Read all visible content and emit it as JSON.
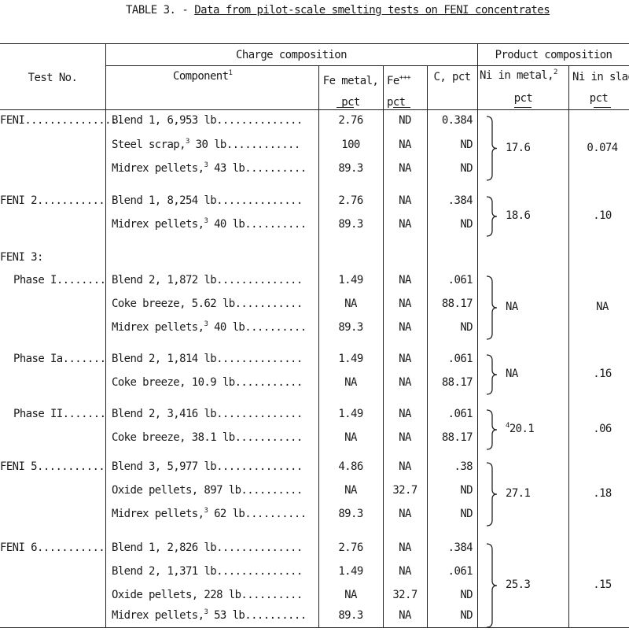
{
  "title": {
    "prefix": "TABLE 3. - ",
    "text": "Data from pilot-scale smelting tests on FENI concentrates"
  },
  "header": {
    "charge_group": "Charge composition",
    "product_group": "Product composition",
    "test_no": "Test No.",
    "component": "Component",
    "component_note": "1",
    "fe_metal_1": "Fe metal,",
    "fe_metal_2": "pct",
    "fe3_1": "Fe",
    "fe3_sup": "+++",
    "fe3_2": "pct",
    "c_pct": "C, pct",
    "ni_metal_1": "Ni in metal,",
    "ni_metal_note": "2",
    "ni_metal_2": "pct",
    "ni_slag_1": "Ni in slag",
    "ni_slag_2": "pct"
  },
  "tests": [
    {
      "label": "FENI",
      "dots": "................",
      "ni_metal": "17.6",
      "ni_slag": "0.074",
      "rows": [
        {
          "comp": "Blend 1, 6,953 lb",
          "sup": "",
          "tail": "",
          "dots": "..............",
          "fe": "2.76",
          "fe3": "ND",
          "c": "0.384"
        },
        {
          "comp": "Steel scrap,",
          "sup": "3",
          "tail": " 30 lb",
          "dots": "............",
          "fe": "100",
          "fe3": "NA",
          "c": "ND"
        },
        {
          "comp": "Midrex pellets,",
          "sup": "3",
          "tail": " 43 lb",
          "dots": "..........",
          "fe": "89.3",
          "fe3": "NA",
          "c": "ND"
        }
      ]
    },
    {
      "label": "FENI 2",
      "dots": "...........",
      "ni_metal": "18.6",
      "ni_slag": ".10",
      "rows": [
        {
          "comp": "Blend 1, 8,254 lb",
          "sup": "",
          "tail": "",
          "dots": "..............",
          "fe": "2.76",
          "fe3": "NA",
          "c": ".384"
        },
        {
          "comp": "Midrex pellets,",
          "sup": "3",
          "tail": " 40 lb",
          "dots": "..........",
          "fe": "89.3",
          "fe3": "NA",
          "c": "ND"
        }
      ]
    },
    {
      "label": "FENI 3:",
      "dots": "",
      "ni_metal": "",
      "ni_slag": "",
      "rows": []
    },
    {
      "label": "Phase I",
      "dots": "........",
      "ni_metal": "NA",
      "ni_slag": "NA",
      "rows": [
        {
          "comp": "Blend 2, 1,872 lb",
          "sup": "",
          "tail": "",
          "dots": "..............",
          "fe": "1.49",
          "fe3": "NA",
          "c": ".061"
        },
        {
          "comp": "Coke breeze, 5.62 lb",
          "sup": "",
          "tail": "",
          "dots": "...........",
          "fe": "NA",
          "fe3": "NA",
          "c": "88.17"
        },
        {
          "comp": "Midrex pellets,",
          "sup": "3",
          "tail": " 40 lb",
          "dots": "..........",
          "fe": "89.3",
          "fe3": "NA",
          "c": "ND"
        }
      ]
    },
    {
      "label": "Phase Ia",
      "dots": ".......",
      "ni_metal": "NA",
      "ni_slag": ".16",
      "rows": [
        {
          "comp": "Blend 2, 1,814 lb",
          "sup": "",
          "tail": "",
          "dots": "..............",
          "fe": "1.49",
          "fe3": "NA",
          "c": ".061"
        },
        {
          "comp": "Coke breeze, 10.9 lb",
          "sup": "",
          "tail": "",
          "dots": "...........",
          "fe": "NA",
          "fe3": "NA",
          "c": "88.17"
        }
      ]
    },
    {
      "label": "Phase II",
      "dots": ".......",
      "ni_metal": "20.1",
      "ni_metal_note": "4",
      "ni_slag": ".06",
      "rows": [
        {
          "comp": "Blend 2, 3,416 lb",
          "sup": "",
          "tail": "",
          "dots": "..............",
          "fe": "1.49",
          "fe3": "NA",
          "c": ".061"
        },
        {
          "comp": "Coke breeze, 38.1 lb",
          "sup": "",
          "tail": "",
          "dots": "...........",
          "fe": "NA",
          "fe3": "NA",
          "c": "88.17"
        }
      ]
    },
    {
      "label": "FENI 5",
      "dots": "...........",
      "ni_metal": "27.1",
      "ni_slag": ".18",
      "rows": [
        {
          "comp": "Blend 3, 5,977 lb",
          "sup": "",
          "tail": "",
          "dots": "..............",
          "fe": "4.86",
          "fe3": "NA",
          "c": ".38"
        },
        {
          "comp": "Oxide pellets, 897 lb",
          "sup": "",
          "tail": "",
          "dots": "..........",
          "fe": "NA",
          "fe3": "32.7",
          "c": "ND"
        },
        {
          "comp": "Midrex pellets,",
          "sup": "3",
          "tail": " 62 lb",
          "dots": "..........",
          "fe": "89.3",
          "fe3": "NA",
          "c": "ND"
        }
      ]
    },
    {
      "label": "FENI 6",
      "dots": "...........",
      "ni_metal": "25.3",
      "ni_slag": ".15",
      "rows": [
        {
          "comp": "Blend 1, 2,826 lb",
          "sup": "",
          "tail": "",
          "dots": "..............",
          "fe": "2.76",
          "fe3": "NA",
          "c": ".384"
        },
        {
          "comp": "Blend 2, 1,371 lb",
          "sup": "",
          "tail": "",
          "dots": "..............",
          "fe": "1.49",
          "fe3": "NA",
          "c": ".061"
        },
        {
          "comp": "Oxide pellets, 228 lb",
          "sup": "",
          "tail": "",
          "dots": "..........",
          "fe": "NA",
          "fe3": "32.7",
          "c": "ND"
        },
        {
          "comp": "Midrex pellets,",
          "sup": "3",
          "tail": " 53 lb",
          "dots": "..........",
          "fe": "89.3",
          "fe3": "NA",
          "c": "ND"
        }
      ]
    }
  ]
}
